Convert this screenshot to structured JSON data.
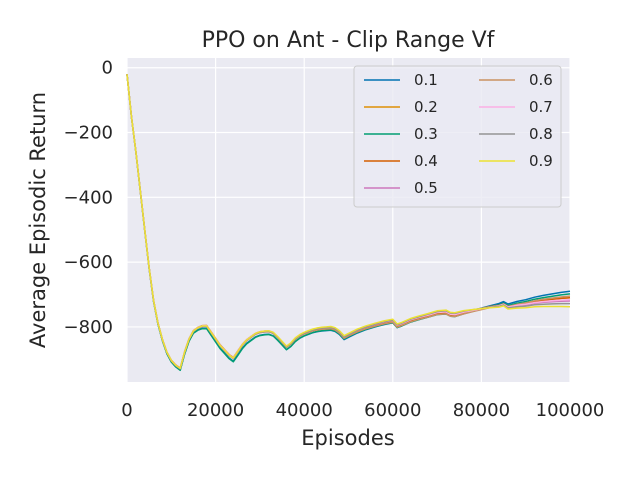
{
  "chart_data": {
    "type": "line",
    "title": "PPO on Ant - Clip Range Vf",
    "xlabel": "Episodes",
    "ylabel": "Average Episodic Return",
    "xlim": [
      0,
      100000
    ],
    "ylim": [
      -970,
      30
    ],
    "xticks": [
      0,
      20000,
      40000,
      60000,
      80000,
      100000
    ],
    "xtick_labels": [
      "0",
      "20000",
      "40000",
      "60000",
      "80000",
      "100000"
    ],
    "yticks": [
      0,
      -200,
      -400,
      -600,
      -800
    ],
    "ytick_labels": [
      "0",
      "−200",
      "−400",
      "−600",
      "−800"
    ],
    "grid": true,
    "legend": "top-right, 2 columns",
    "base_x": [
      0,
      1000,
      2000,
      3000,
      4000,
      5000,
      6000,
      7000,
      8000,
      9000,
      10000,
      11000,
      12000,
      13000,
      14000,
      15000,
      16000,
      17000,
      18000,
      19000,
      20000,
      21000,
      22000,
      23000,
      24000,
      25000,
      26000,
      27000,
      28000,
      29000,
      30000,
      31000,
      32000,
      33000,
      34000,
      35000,
      36000,
      37000,
      38000,
      39000,
      40000,
      41000,
      42000,
      43000,
      44000,
      45000,
      46000,
      47000,
      48000,
      49000,
      50000,
      52000,
      54000,
      56000,
      58000,
      60000,
      61000,
      62000,
      64000,
      66000,
      68000,
      70000,
      72000,
      73000,
      74000,
      76000,
      78000,
      80000,
      82000,
      84000,
      85000,
      86000,
      88000,
      90000,
      92000,
      94000,
      96000,
      98000,
      100000
    ],
    "base_y": [
      -20,
      -150,
      -260,
      -380,
      -500,
      -620,
      -720,
      -790,
      -840,
      -880,
      -905,
      -920,
      -930,
      -880,
      -840,
      -815,
      -805,
      -800,
      -800,
      -820,
      -840,
      -860,
      -875,
      -890,
      -900,
      -880,
      -860,
      -845,
      -835,
      -825,
      -820,
      -818,
      -817,
      -822,
      -835,
      -850,
      -865,
      -855,
      -840,
      -830,
      -823,
      -818,
      -813,
      -810,
      -808,
      -807,
      -806,
      -810,
      -820,
      -835,
      -828,
      -815,
      -805,
      -797,
      -790,
      -785,
      -800,
      -795,
      -783,
      -775,
      -768,
      -760,
      -758,
      -765,
      -766,
      -758,
      -752,
      -746,
      -740,
      -735,
      -730,
      -738,
      -732,
      -728,
      -722,
      -718,
      -715,
      -712,
      -710
    ],
    "series": [
      {
        "name": "0.1",
        "color": "#0173b2",
        "dy": [
          0,
          -6,
          -4,
          0,
          20
        ]
      },
      {
        "name": "0.2",
        "color": "#de8f05",
        "dy": [
          0,
          4,
          3,
          4,
          0
        ]
      },
      {
        "name": "0.3",
        "color": "#029e73",
        "dy": [
          0,
          -8,
          -2,
          -2,
          12
        ]
      },
      {
        "name": "0.4",
        "color": "#d55e00",
        "dy": [
          0,
          6,
          2,
          2,
          0
        ]
      },
      {
        "name": "0.5",
        "color": "#cc78bc",
        "dy": [
          0,
          2,
          4,
          6,
          -10
        ]
      },
      {
        "name": "0.6",
        "color": "#ca9161",
        "dy": [
          0,
          3,
          0,
          -2,
          5
        ]
      },
      {
        "name": "0.7",
        "color": "#fbafe4",
        "dy": [
          0,
          5,
          6,
          4,
          -6
        ]
      },
      {
        "name": "0.8",
        "color": "#949494",
        "dy": [
          0,
          3,
          5,
          8,
          -18
        ]
      },
      {
        "name": "0.9",
        "color": "#ece133",
        "dy": [
          0,
          4,
          8,
          10,
          -28
        ]
      }
    ]
  }
}
